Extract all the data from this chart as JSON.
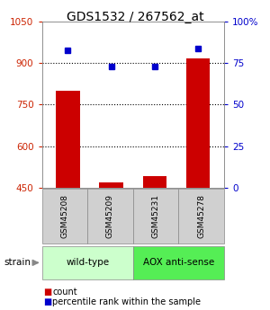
{
  "title": "GDS1532 / 267562_at",
  "samples": [
    "GSM45208",
    "GSM45209",
    "GSM45231",
    "GSM45278"
  ],
  "counts": [
    800,
    468,
    490,
    918
  ],
  "percentiles": [
    83,
    73,
    73,
    84
  ],
  "ylim_left": [
    450,
    1050
  ],
  "ylim_right": [
    0,
    100
  ],
  "yticks_left": [
    450,
    600,
    750,
    900,
    1050
  ],
  "yticks_right": [
    0,
    25,
    50,
    75,
    100
  ],
  "ytick_labels_left": [
    "450",
    "600",
    "750",
    "900",
    "1050"
  ],
  "ytick_labels_right": [
    "0",
    "25",
    "50",
    "75",
    "100%"
  ],
  "grid_values": [
    600,
    750,
    900
  ],
  "bar_color": "#cc0000",
  "dot_color": "#0000cc",
  "bar_width": 0.55,
  "groups": [
    {
      "label": "wild-type",
      "indices": [
        0,
        1
      ],
      "color": "#ccffcc"
    },
    {
      "label": "AOX anti-sense",
      "indices": [
        2,
        3
      ],
      "color": "#55ee55"
    }
  ],
  "strain_label": "strain",
  "legend_count_label": "count",
  "legend_percentile_label": "percentile rank within the sample",
  "axis_left_color": "#cc2200",
  "axis_right_color": "#0000cc",
  "background_color": "#ffffff",
  "plot_bg_color": "#ffffff",
  "sample_box_color": "#d0d0d0",
  "sample_box_edge": "#888888"
}
